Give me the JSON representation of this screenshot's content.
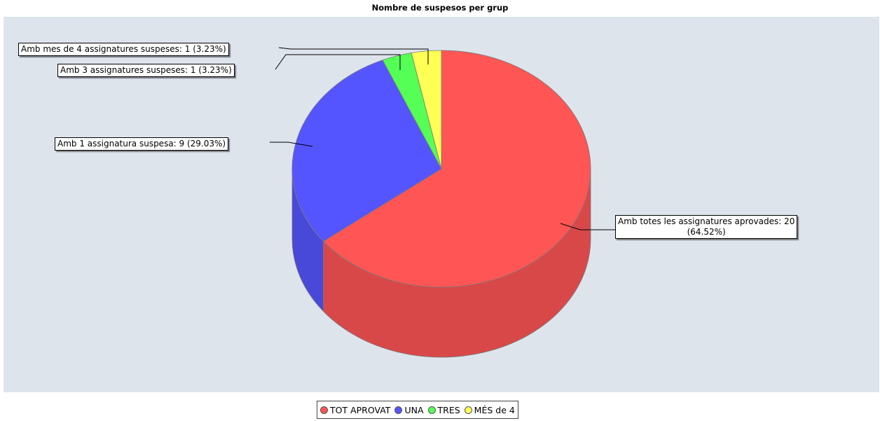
{
  "chart_data": {
    "type": "pie",
    "style": "3d",
    "title": "Nombre de suspesos per grup",
    "slices": [
      {
        "legend": "TOT APROVAT",
        "label": "Amb totes les assignatures aprovades: 20 (64.52%)",
        "label_lines": [
          "Amb totes les assignatures aprovades: 20",
          "(64.52%)"
        ],
        "value": 20,
        "percent": 64.52,
        "color": "#ff5555"
      },
      {
        "legend": "UNA",
        "label": "Amb 1 assignatura suspesa: 9 (29.03%)",
        "label_lines": [
          "Amb 1 assignatura suspesa: 9 (29.03%)"
        ],
        "value": 9,
        "percent": 29.03,
        "color": "#5555ff"
      },
      {
        "legend": "TRES",
        "label": "Amb 3 assignatures suspeses: 1 (3.23%)",
        "label_lines": [
          "Amb 3 assignatures suspeses: 1 (3.23%)"
        ],
        "value": 1,
        "percent": 3.23,
        "color": "#55ff55"
      },
      {
        "legend": "MÉS de 4",
        "label": "Amb mes de 4 assignatures suspeses: 1 (3.23%)",
        "label_lines": [
          "Amb mes de 4 assignatures suspeses: 1 (3.23%)"
        ],
        "value": 1,
        "percent": 3.23,
        "color": "#ffff55"
      }
    ],
    "legend_position": "bottom"
  }
}
